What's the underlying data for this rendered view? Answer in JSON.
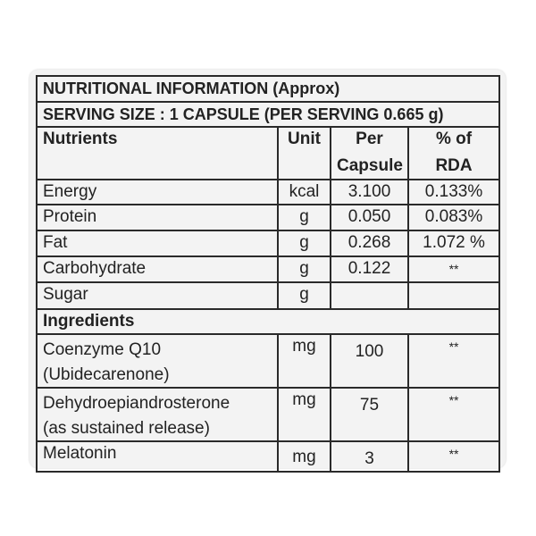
{
  "title": "NUTRITIONAL INFORMATION (Approx)",
  "serving": "SERVING SIZE : 1 CAPSULE (PER SERVING 0.665 g)",
  "headers": {
    "nutrients": "Nutrients",
    "unit": "Unit",
    "per_1": "Per",
    "per_2": "Capsule",
    "rda_1": "% of",
    "rda_2": "RDA"
  },
  "nutrients": [
    {
      "name": "Energy",
      "unit": "kcal",
      "per": "3.100",
      "rda": "0.133%"
    },
    {
      "name": "Protein",
      "unit": "g",
      "per": "0.050",
      "rda": "0.083%"
    },
    {
      "name": "Fat",
      "unit": "g",
      "per": "0.268",
      "rda": "1.072 %"
    },
    {
      "name": "Carbohydrate",
      "unit": "g",
      "per": "0.122",
      "rda": "**"
    },
    {
      "name": "Sugar",
      "unit": "g",
      "per": "",
      "rda": ""
    }
  ],
  "ingredients_header": "Ingredients",
  "ingredients": [
    {
      "name_1": "Coenzyme Q10",
      "name_2": "(Ubidecarenone)",
      "unit": "mg",
      "per": "100",
      "rda": "**"
    },
    {
      "name_1": "Dehydroepiandrosterone",
      "name_2": "(as sustained release)",
      "unit": "mg",
      "per": "75",
      "rda": "**"
    },
    {
      "name_1": "Melatonin",
      "unit": "mg",
      "per": "3",
      "rda": "**"
    }
  ]
}
